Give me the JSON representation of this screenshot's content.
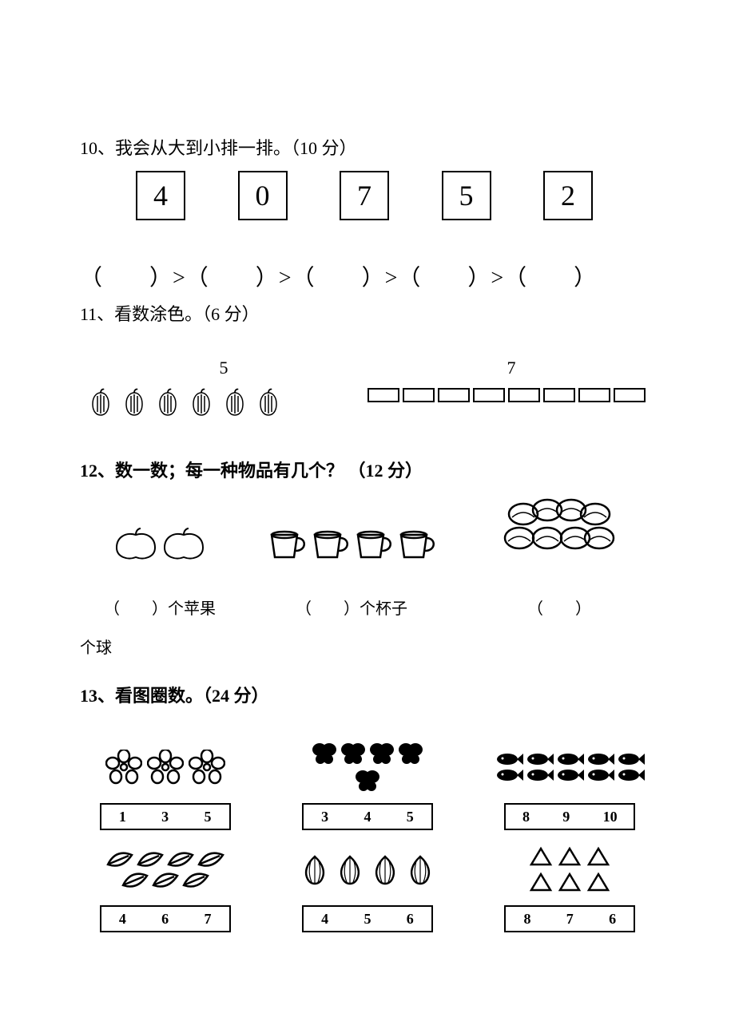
{
  "q10": {
    "title": "10、我会从大到小排一排。（10 分）",
    "numbers": [
      "4",
      "0",
      "7",
      "5",
      "2"
    ],
    "paren_row": "（　　）>（　　）>（　　）>（　　）>（　　）"
  },
  "q11": {
    "title": "11、看数涂色。（6 分）",
    "left_label": "5",
    "right_label": "7",
    "pepper_count": 6,
    "rect_count": 8,
    "pepper_color": "#333333",
    "rect_border": "#000000",
    "rect_w": 40,
    "rect_h": 18
  },
  "q12": {
    "title": "12、数一数；每一种物品有几个？ （12 分）",
    "apples_label": "（　　）个苹果",
    "cups_label": "（　　）个杯子",
    "balls_label": "（　　）",
    "balls_suffix": "个球",
    "apple_count": 2,
    "cup_count": 4,
    "ball_count": 8
  },
  "q13": {
    "title": "13、看图圈数。（24 分）",
    "cells": [
      {
        "kind": "flower",
        "count": 3,
        "choices": [
          "1",
          "3",
          "5"
        ]
      },
      {
        "kind": "butterfly",
        "count": 5,
        "choices": [
          "3",
          "4",
          "5"
        ]
      },
      {
        "kind": "fish",
        "count": 10,
        "choices": [
          "8",
          "9",
          "10"
        ]
      },
      {
        "kind": "leaf",
        "count": 7,
        "choices": [
          "4",
          "6",
          "7"
        ]
      },
      {
        "kind": "onion",
        "count": 4,
        "choices": [
          "4",
          "5",
          "6"
        ]
      },
      {
        "kind": "triangle",
        "count": 6,
        "choices": [
          "8",
          "7",
          "6"
        ]
      }
    ]
  },
  "style": {
    "stroke": "#000000",
    "bg": "#ffffff",
    "font_size_body": 22,
    "font_size_box": 36
  }
}
